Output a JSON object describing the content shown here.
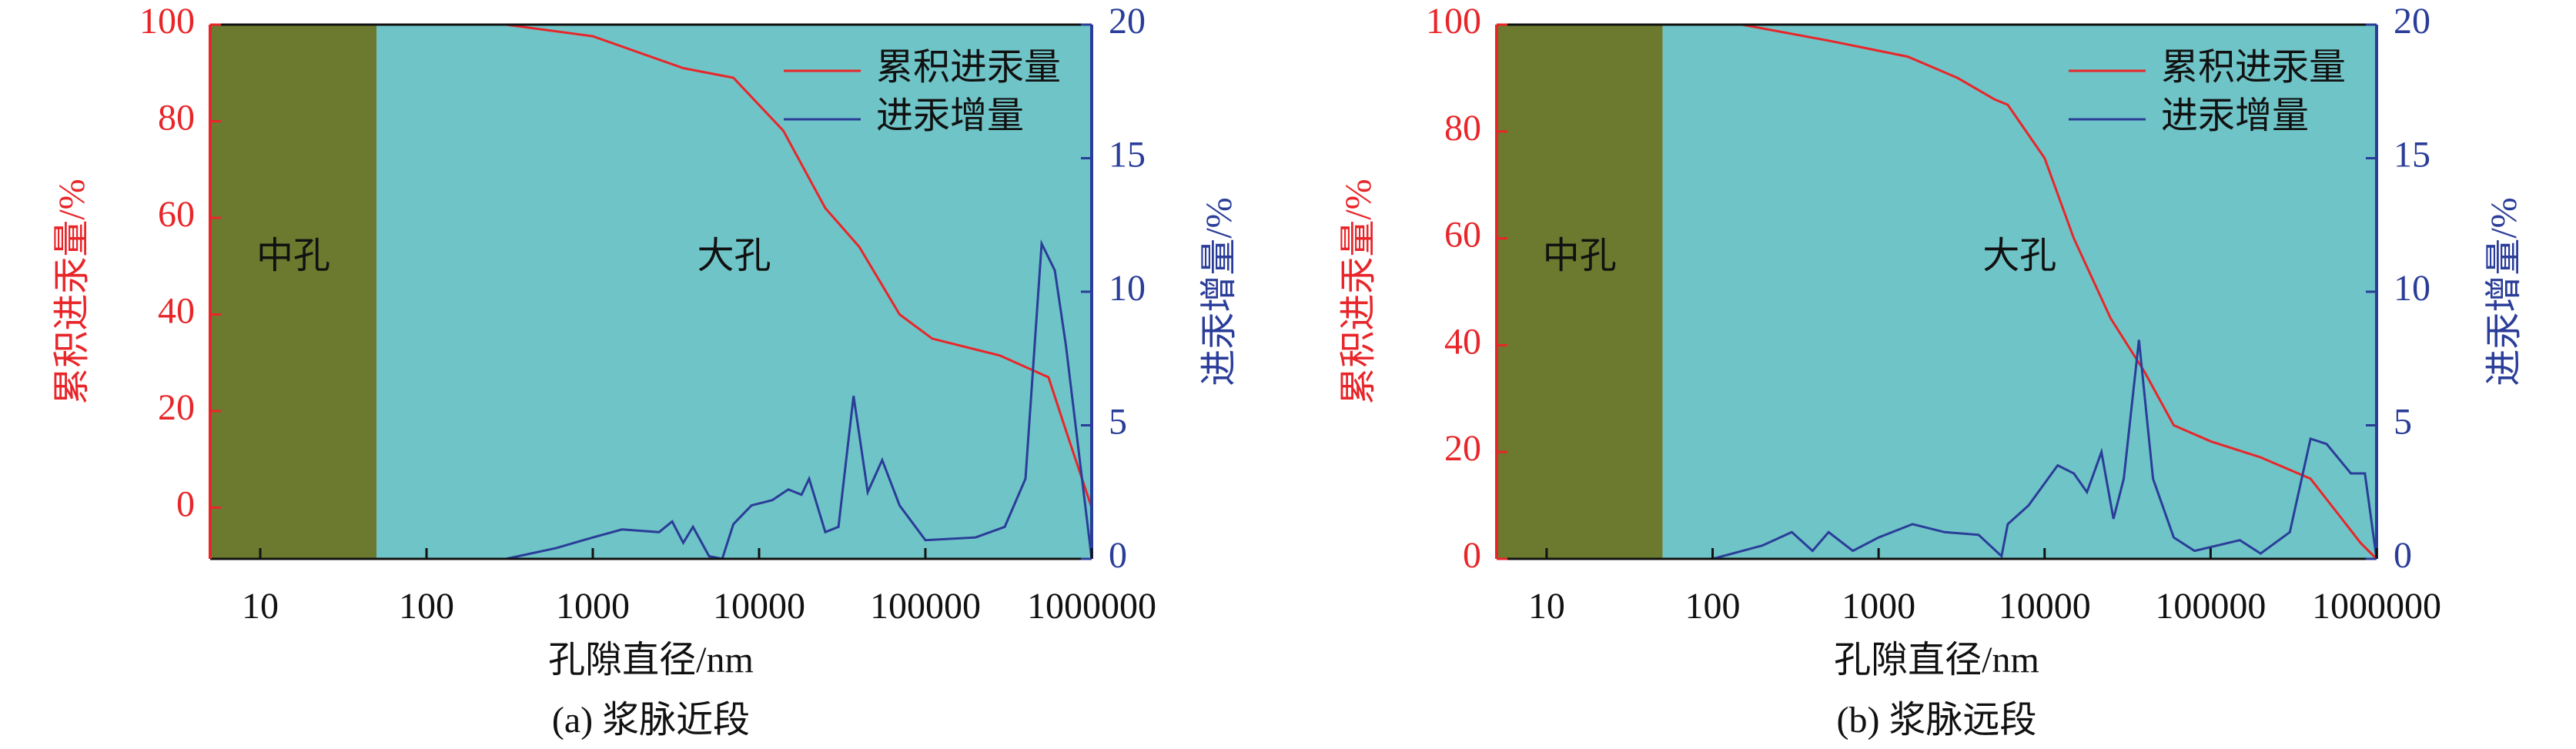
{
  "chart_data": [
    {
      "type": "line",
      "title": "(a) 浆脉近段",
      "xlabel": "孔隙直径/nm",
      "ylabel": "累积进汞量/%",
      "y2label": "进汞增量/%",
      "xscale": "log",
      "xlim": [
        5,
        1000000
      ],
      "xticks": [
        10,
        100,
        1000,
        10000,
        100000,
        1000000
      ],
      "ylim": [
        -10.6,
        100
      ],
      "yticks": [
        0,
        20,
        40,
        60,
        80,
        100
      ],
      "y2lim": [
        0,
        20
      ],
      "y2ticks": [
        0,
        5,
        10,
        15,
        20
      ],
      "legend": "upper right",
      "regions": [
        {
          "label": "中孔",
          "range": [
            5,
            50
          ],
          "color": "#6b7a2e"
        },
        {
          "label": "大孔",
          "range": [
            50,
            1000000
          ],
          "color": "#6fc4c7"
        }
      ],
      "series": [
        {
          "name": "累积进汞量",
          "color": "#e8262a",
          "axis": "y",
          "x": [
            50,
            300,
            1000,
            3500,
            7000,
            14000,
            25000,
            40000,
            70000,
            110000,
            280000,
            550000,
            700000,
            1000000
          ],
          "values": [
            100,
            100,
            97.6,
            91,
            89,
            78,
            62,
            54,
            40,
            35,
            31.5,
            27,
            16,
            0
          ]
        },
        {
          "name": "进汞增量",
          "color": "#2a3d98",
          "axis": "y2",
          "x": [
            300,
            600,
            1000,
            1500,
            2500,
            3000,
            3500,
            4000,
            5000,
            6000,
            7000,
            9000,
            12000,
            15000,
            18000,
            20000,
            25000,
            30000,
            37000,
            45000,
            55000,
            70000,
            100000,
            200000,
            300000,
            400000,
            500000,
            600000,
            700000,
            1000000
          ],
          "values": [
            0,
            0.4,
            0.8,
            1.1,
            1.0,
            1.4,
            0.6,
            1.2,
            0.1,
            0.0,
            1.3,
            2.0,
            2.2,
            2.6,
            2.4,
            3.0,
            1.0,
            1.2,
            6.1,
            2.5,
            3.7,
            2.0,
            0.7,
            0.8,
            1.2,
            3.0,
            11.8,
            10.8,
            8.0,
            0
          ]
        }
      ]
    },
    {
      "type": "line",
      "title": "(b) 浆脉远段",
      "xlabel": "孔隙直径/nm",
      "ylabel": "累积进汞量/%",
      "y2label": "进汞增量/%",
      "xscale": "log",
      "xlim": [
        5,
        1000000
      ],
      "xticks": [
        10,
        100,
        1000,
        10000,
        100000,
        1000000
      ],
      "ylim": [
        0,
        100
      ],
      "yticks": [
        0,
        20,
        40,
        60,
        80,
        100
      ],
      "y2lim": [
        0,
        20
      ],
      "y2ticks": [
        0,
        5,
        10,
        15,
        20
      ],
      "legend": "upper right",
      "regions": [
        {
          "label": "中孔",
          "range": [
            5,
            50
          ],
          "color": "#6b7a2e"
        },
        {
          "label": "大孔",
          "range": [
            50,
            1000000
          ],
          "color": "#6fc4c7"
        }
      ],
      "series": [
        {
          "name": "累积进汞量",
          "color": "#e8262a",
          "axis": "y",
          "x": [
            50,
            150,
            500,
            1500,
            3000,
            5000,
            6000,
            10000,
            15000,
            25000,
            40000,
            60000,
            100000,
            200000,
            400000,
            600000,
            800000,
            1000000
          ],
          "values": [
            100,
            100,
            97,
            94,
            90,
            86,
            85,
            75,
            60,
            45,
            35,
            25,
            22,
            19,
            15,
            8,
            3,
            0
          ]
        },
        {
          "name": "进汞增量",
          "color": "#2a3d98",
          "axis": "y2",
          "x": [
            100,
            200,
            300,
            400,
            500,
            700,
            1000,
            1600,
            2500,
            4000,
            5500,
            6000,
            8000,
            12000,
            15000,
            18000,
            22000,
            26000,
            30000,
            37000,
            45000,
            60000,
            80000,
            150000,
            200000,
            300000,
            400000,
            500000,
            700000,
            850000,
            1000000
          ],
          "values": [
            0,
            0.5,
            1.0,
            0.3,
            1.0,
            0.3,
            0.8,
            1.3,
            1.0,
            0.9,
            0.1,
            1.3,
            2.0,
            3.5,
            3.2,
            2.5,
            4.0,
            1.5,
            3.0,
            8.2,
            3.0,
            0.8,
            0.3,
            0.7,
            0.2,
            1.0,
            4.5,
            4.3,
            3.2,
            3.2,
            0
          ]
        }
      ]
    }
  ]
}
